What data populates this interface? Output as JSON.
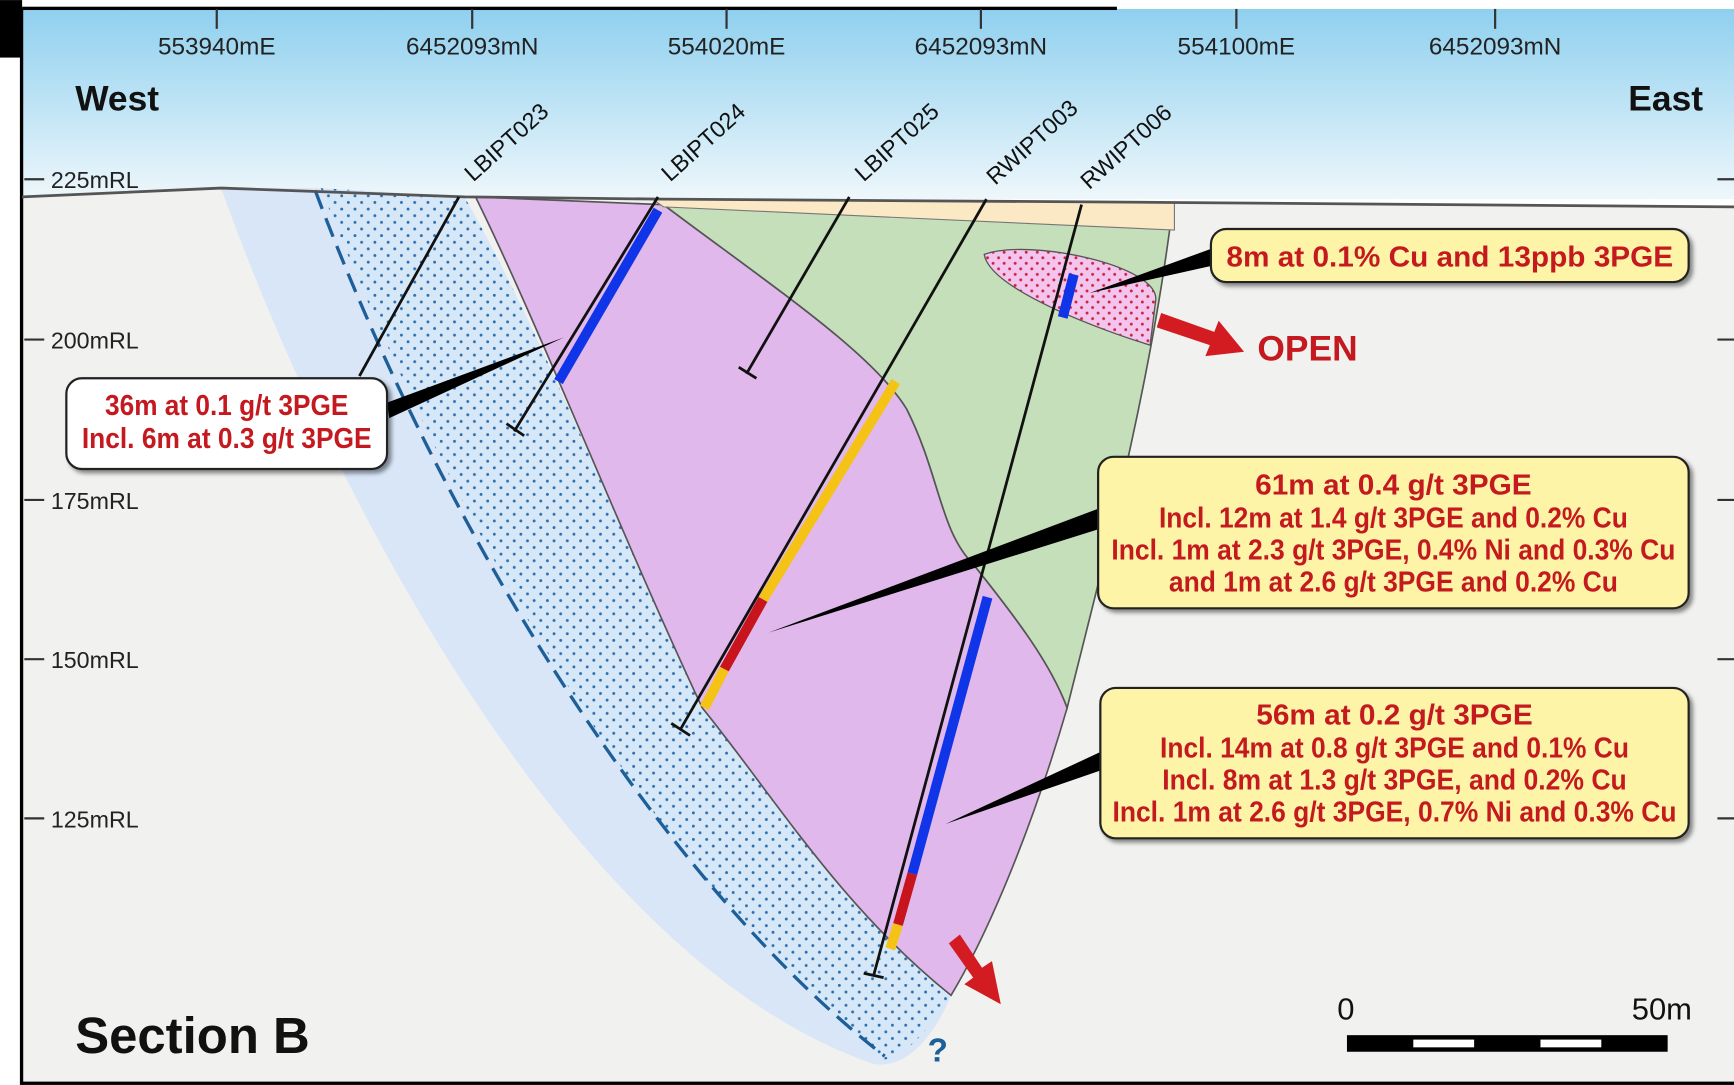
{
  "top_labels": [
    "553940mE",
    "6452093mN",
    "554020mE",
    "6452093mN",
    "554100mE",
    "6452093mN"
  ],
  "directions": {
    "west": "West",
    "east": "East"
  },
  "rl_labels": [
    "225mRL",
    "200mRL",
    "175mRL",
    "150mRL",
    "125mRL"
  ],
  "drillholes": [
    "LBIPT023",
    "LBIPT024",
    "LBIPT025",
    "RWIPT003",
    "RWIPT006"
  ],
  "callouts": [
    {
      "lines": [
        "36m at 0.1 g/t 3PGE",
        "Incl. 6m at 0.3 g/t 3PGE"
      ]
    },
    {
      "lines": [
        "8m at 0.1% Cu and 13ppb 3PGE"
      ]
    },
    {
      "lines": [
        "61m at 0.4 g/t 3PGE",
        "Incl. 12m at 1.4 g/t 3PGE and 0.2% Cu",
        "Incl. 1m at 2.3 g/t 3PGE, 0.4% Ni and 0.3% Cu",
        "and 1m at 2.6 g/t 3PGE and 0.2% Cu"
      ]
    },
    {
      "lines": [
        "56m at 0.2 g/t 3PGE",
        "Incl. 14m at 0.8 g/t 3PGE and 0.1% Cu",
        "Incl. 8m at 1.3 g/t 3PGE, and 0.2% Cu",
        "Incl. 1m at 2.6 g/t 3PGE, 0.7% Ni and 0.3% Cu"
      ]
    }
  ],
  "open_label": "OPEN",
  "title": "Section B",
  "scale_bar": {
    "start": "0",
    "end": "50m"
  },
  "unknown_marker": "?"
}
